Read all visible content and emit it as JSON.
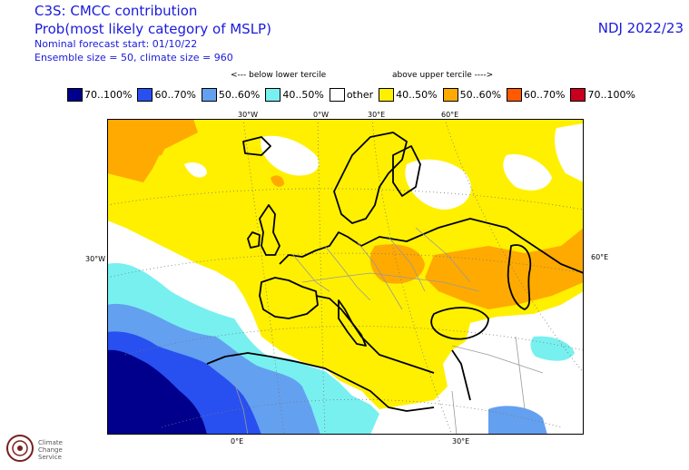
{
  "header": {
    "title_line1": "C3S: CMCC contribution",
    "title_line2": "Prob(most likely category of MSLP)",
    "sub_line1": "Nominal forecast start: 01/10/22",
    "sub_line2": "Ensemble size = 50, climate size = 960",
    "season": "NDJ 2022/23"
  },
  "legend": {
    "below_label": "<--- below lower tercile",
    "above_label": "above upper tercile ---->",
    "items": [
      {
        "label": "70..100%",
        "color": "#00008c"
      },
      {
        "label": "60..70%",
        "color": "#2850f0"
      },
      {
        "label": "50..60%",
        "color": "#64a0f0"
      },
      {
        "label": "40..50%",
        "color": "#78f0f0"
      },
      {
        "label": "other",
        "color": "#ffffff"
      },
      {
        "label": "40..50%",
        "color": "#fff000"
      },
      {
        "label": "50..60%",
        "color": "#ffaa00"
      },
      {
        "label": "60..70%",
        "color": "#ff5a00"
      },
      {
        "label": "70..100%",
        "color": "#c8001e"
      }
    ]
  },
  "map": {
    "top_ticks": [
      "30°W",
      "0°W",
      "30°E",
      "60°E"
    ],
    "left_tick": "30°W",
    "right_tick": "60°E",
    "bottom_ticks": [
      "0°E",
      "30°E"
    ]
  },
  "logo": {
    "name": "Climate Change Service"
  }
}
